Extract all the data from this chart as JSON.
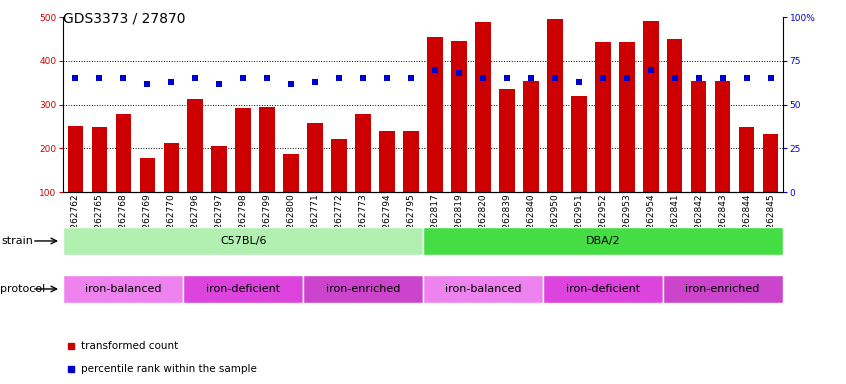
{
  "title": "GDS3373 / 27870",
  "samples": [
    "GSM262762",
    "GSM262765",
    "GSM262768",
    "GSM262769",
    "GSM262770",
    "GSM262796",
    "GSM262797",
    "GSM262798",
    "GSM262799",
    "GSM262800",
    "GSM262771",
    "GSM262772",
    "GSM262773",
    "GSM262794",
    "GSM262795",
    "GSM262817",
    "GSM262819",
    "GSM262820",
    "GSM262839",
    "GSM262840",
    "GSM262950",
    "GSM262951",
    "GSM262952",
    "GSM262953",
    "GSM262954",
    "GSM262841",
    "GSM262842",
    "GSM262843",
    "GSM262844",
    "GSM262845"
  ],
  "bar_values": [
    252,
    248,
    278,
    178,
    213,
    312,
    205,
    293,
    295,
    188,
    257,
    222,
    278,
    240,
    240,
    455,
    445,
    490,
    335,
    355,
    497,
    320,
    443,
    443,
    492,
    450,
    355,
    355,
    248,
    232
  ],
  "dot_values": [
    65,
    65,
    65,
    62,
    63,
    65,
    62,
    65,
    65,
    62,
    63,
    65,
    65,
    65,
    65,
    70,
    68,
    65,
    65,
    65,
    65,
    63,
    65,
    65,
    70,
    65,
    65,
    65,
    65,
    65
  ],
  "bar_color": "#cc0000",
  "dot_color": "#0000cc",
  "ylim_left": [
    100,
    500
  ],
  "ylim_right": [
    0,
    100
  ],
  "yticks_left": [
    100,
    200,
    300,
    400,
    500
  ],
  "yticks_right": [
    0,
    25,
    50,
    75,
    100
  ],
  "grid_values": [
    200,
    300,
    400
  ],
  "strain_groups": [
    {
      "label": "C57BL/6",
      "start": 0,
      "end": 15,
      "color": "#b2f0b2"
    },
    {
      "label": "DBA/2",
      "start": 15,
      "end": 30,
      "color": "#44dd44"
    }
  ],
  "protocol_colors": {
    "iron-balanced": "#ee82ee",
    "iron-deficient": "#dd44dd",
    "iron-enriched": "#cc44cc"
  },
  "protocol_groups": [
    {
      "label": "iron-balanced",
      "start": 0,
      "end": 5
    },
    {
      "label": "iron-deficient",
      "start": 5,
      "end": 10
    },
    {
      "label": "iron-enriched",
      "start": 10,
      "end": 15
    },
    {
      "label": "iron-balanced",
      "start": 15,
      "end": 20
    },
    {
      "label": "iron-deficient",
      "start": 20,
      "end": 25
    },
    {
      "label": "iron-enriched",
      "start": 25,
      "end": 30
    }
  ],
  "legend_items": [
    {
      "label": "transformed count",
      "color": "#cc0000"
    },
    {
      "label": "percentile rank within the sample",
      "color": "#0000cc"
    }
  ],
  "title_fontsize": 10,
  "tick_fontsize": 6.5,
  "annotation_fontsize": 8,
  "label_fontsize": 8
}
